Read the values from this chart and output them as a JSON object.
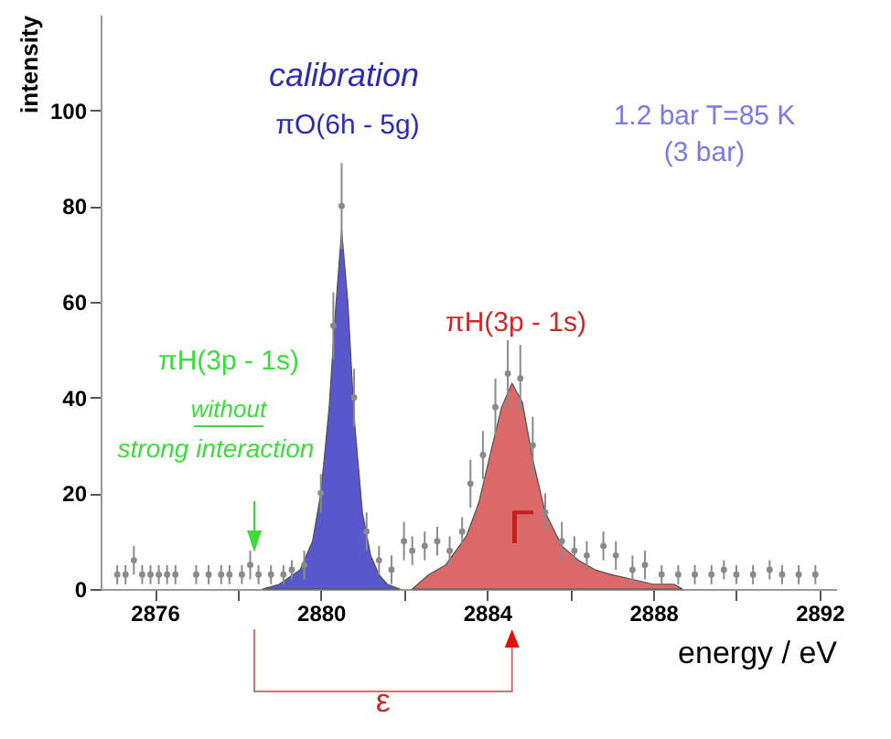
{
  "chart_data": {
    "type": "area",
    "xlabel": "energy / eV",
    "ylabel": "intensity",
    "xlim": [
      2874.7,
      2892.4
    ],
    "ylim": [
      0,
      120
    ],
    "xticks": [
      2876,
      {
        "value": 2878,
        "label": null
      },
      2880,
      {
        "value": 2882,
        "label": null
      },
      2884,
      {
        "value": 2886,
        "label": null
      },
      2888,
      {
        "value": 2890,
        "label": null
      },
      2892
    ],
    "yticks": [
      0,
      20,
      40,
      60,
      80,
      100
    ],
    "grid": false,
    "series": [
      {
        "color": "#3b3bc4",
        "x": [
          2878.6,
          2879.0,
          2879.5,
          2879.8,
          2880.0,
          2880.2,
          2880.35,
          2880.5,
          2880.65,
          2880.8,
          2881.0,
          2881.2,
          2881.4,
          2881.6,
          2881.9
        ],
        "values": [
          0,
          1,
          4,
          10,
          20,
          38,
          58,
          75,
          60,
          36,
          16,
          7,
          3,
          1,
          0
        ]
      },
      {
        "color": "#d65050",
        "x": [
          2882.2,
          2882.6,
          2883.0,
          2883.5,
          2883.8,
          2884.1,
          2884.35,
          2884.6,
          2884.85,
          2885.1,
          2885.4,
          2885.8,
          2886.2,
          2886.6,
          2887.0,
          2887.5,
          2888.0,
          2888.5,
          2888.7
        ],
        "values": [
          0,
          3,
          5,
          11,
          18,
          29,
          38,
          43,
          39,
          27,
          16,
          9,
          6,
          4,
          3,
          2,
          1,
          1,
          0
        ]
      },
      {
        "type": "scatter",
        "color": "#8a8a8a",
        "marker": "circle",
        "x": [
          2875.1,
          2875.3,
          2875.5,
          2875.7,
          2875.9,
          2876.1,
          2876.3,
          2876.5,
          2877.0,
          2877.3,
          2877.6,
          2877.8,
          2878.1,
          2878.3,
          2878.5,
          2878.8,
          2879.1,
          2879.3,
          2879.6,
          2880.0,
          2880.3,
          2880.5,
          2880.8,
          2881.1,
          2881.4,
          2881.7,
          2882.0,
          2882.2,
          2882.5,
          2882.8,
          2883.1,
          2883.4,
          2883.6,
          2883.9,
          2884.2,
          2884.5,
          2884.8,
          2885.1,
          2885.4,
          2885.8,
          2886.1,
          2886.4,
          2886.8,
          2887.1,
          2887.5,
          2887.8,
          2888.2,
          2888.6,
          2889.0,
          2889.4,
          2889.7,
          2890.0,
          2890.4,
          2890.8,
          2891.1,
          2891.5,
          2891.9
        ],
        "values": [
          3,
          3,
          6,
          3,
          3,
          3,
          3,
          3,
          3,
          3,
          3,
          3,
          3,
          5,
          3,
          3,
          3,
          4,
          5,
          20,
          55,
          80,
          40,
          12,
          6,
          4,
          10,
          8,
          9,
          10,
          8,
          12,
          22,
          28,
          38,
          45,
          44,
          30,
          16,
          10,
          8,
          7,
          9,
          7,
          4,
          5,
          3,
          3,
          3,
          3,
          4,
          3,
          3,
          4,
          3,
          3,
          3
        ],
        "errors": [
          2,
          2,
          3,
          2,
          2,
          2,
          2,
          2,
          2,
          2,
          2,
          2,
          2,
          3,
          2,
          2,
          2,
          2,
          3,
          4,
          7,
          9,
          6,
          4,
          3,
          3,
          4,
          3,
          3,
          3,
          3,
          3,
          5,
          5,
          6,
          7,
          7,
          6,
          4,
          4,
          3,
          3,
          3,
          3,
          3,
          3,
          2,
          2,
          2,
          2,
          2,
          2,
          2,
          2,
          2,
          2,
          2
        ]
      }
    ],
    "annotations": [
      "calibration",
      "πO(6h - 5g)",
      "1.2 bar  T=85 K",
      "(3 bar)",
      "πH(3p - 1s)",
      "Γ",
      "πH(3p - 1s)",
      "without",
      "strong interaction",
      "ε"
    ]
  }
}
